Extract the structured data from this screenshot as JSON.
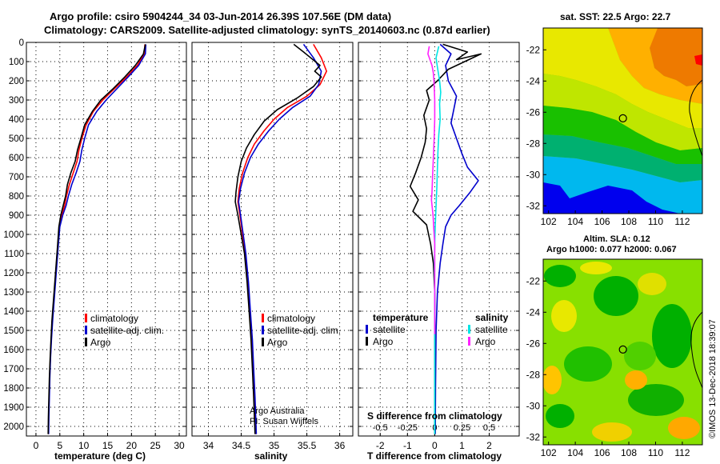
{
  "header": {
    "line1": "Argo profile: csiro 5904244_34 03-Jun-2014 26.39S 107.56E (DM data)",
    "line2": "Climatology: CARS2009. Satellite-adjusted climatology: synTS_20140603.nc (0.87d earlier)"
  },
  "credit": "©IMOS 13-Dec-2018 18:39:07",
  "colors": {
    "climatology": "#ff0000",
    "satellite": "#0000cc",
    "argo": "#000000",
    "sat_salinity": "#00e5e5",
    "argo_salinity": "#ff22ff"
  },
  "depth_axis": {
    "ylim": [
      0,
      2050
    ],
    "ticks": [
      0,
      100,
      200,
      300,
      400,
      500,
      600,
      700,
      800,
      900,
      1000,
      1100,
      1200,
      1300,
      1400,
      1500,
      1600,
      1700,
      1800,
      1900,
      2000
    ]
  },
  "chart_data": [
    {
      "type": "line",
      "xlabel": "temperature (deg C)",
      "xlim": [
        -2,
        31.5
      ],
      "xticks": [
        0,
        5,
        10,
        15,
        20,
        25,
        30
      ],
      "legend": {
        "items": [
          "climatology",
          "satellite-adj. clim.",
          "Argo"
        ]
      },
      "series": [
        {
          "name": "climatology",
          "color": "#ff0000",
          "points": [
            [
              22.8,
              10
            ],
            [
              22.7,
              60
            ],
            [
              21.2,
              120
            ],
            [
              19,
              180
            ],
            [
              16.5,
              240
            ],
            [
              14,
              300
            ],
            [
              12,
              360
            ],
            [
              10.5,
              430
            ],
            [
              9.6,
              500
            ],
            [
              9,
              560
            ],
            [
              8.6,
              620
            ],
            [
              7.8,
              680
            ],
            [
              7,
              740
            ],
            [
              6.4,
              800
            ],
            [
              6,
              850
            ],
            [
              5.4,
              900
            ],
            [
              4.9,
              960
            ],
            [
              4.6,
              1050
            ],
            [
              4.3,
              1150
            ],
            [
              4,
              1250
            ],
            [
              3.7,
              1350
            ],
            [
              3.4,
              1450
            ],
            [
              3.2,
              1550
            ],
            [
              3,
              1650
            ],
            [
              2.85,
              1750
            ],
            [
              2.75,
              1850
            ],
            [
              2.65,
              1950
            ],
            [
              2.6,
              2040
            ]
          ]
        },
        {
          "name": "satellite-adj. clim.",
          "color": "#0000cc",
          "points": [
            [
              23,
              10
            ],
            [
              22.9,
              60
            ],
            [
              21.5,
              120
            ],
            [
              19.3,
              180
            ],
            [
              17,
              240
            ],
            [
              14.7,
              300
            ],
            [
              12.7,
              360
            ],
            [
              11,
              430
            ],
            [
              10.2,
              500
            ],
            [
              9.6,
              560
            ],
            [
              9.2,
              620
            ],
            [
              8.4,
              680
            ],
            [
              7.5,
              740
            ],
            [
              6.8,
              800
            ],
            [
              6.3,
              850
            ],
            [
              5.6,
              900
            ],
            [
              5,
              960
            ],
            [
              4.7,
              1050
            ],
            [
              4.4,
              1150
            ],
            [
              4.1,
              1250
            ],
            [
              3.8,
              1350
            ],
            [
              3.5,
              1450
            ],
            [
              3.25,
              1550
            ],
            [
              3.05,
              1650
            ],
            [
              2.9,
              1750
            ],
            [
              2.8,
              1850
            ],
            [
              2.7,
              1950
            ],
            [
              2.65,
              2040
            ]
          ]
        },
        {
          "name": "Argo",
          "color": "#000000",
          "points": [
            [
              22.9,
              10
            ],
            [
              22.5,
              60
            ],
            [
              20.8,
              120
            ],
            [
              18.6,
              180
            ],
            [
              16.2,
              240
            ],
            [
              13.6,
              300
            ],
            [
              11.8,
              360
            ],
            [
              10.2,
              430
            ],
            [
              9.4,
              500
            ],
            [
              8.7,
              560
            ],
            [
              8.2,
              620
            ],
            [
              7.3,
              680
            ],
            [
              6.6,
              740
            ],
            [
              6.2,
              800
            ],
            [
              5.7,
              850
            ],
            [
              5.2,
              900
            ],
            [
              4.8,
              960
            ],
            [
              4.55,
              1050
            ],
            [
              4.25,
              1150
            ],
            [
              3.95,
              1250
            ],
            [
              3.65,
              1350
            ],
            [
              3.35,
              1450
            ],
            [
              3.15,
              1550
            ],
            [
              2.95,
              1650
            ],
            [
              2.8,
              1750
            ],
            [
              2.7,
              1850
            ],
            [
              2.6,
              1950
            ],
            [
              2.55,
              2040
            ]
          ]
        }
      ]
    },
    {
      "type": "line",
      "xlabel": "salinity",
      "xlim": [
        33.75,
        36.2
      ],
      "xticks": [
        34,
        34.5,
        35,
        35.5,
        36
      ],
      "legend": {
        "items": [
          "climatology",
          "satellite-adj. clim.",
          "Argo"
        ]
      },
      "annotation": [
        "Argo Australia",
        "PI: Susan Wijffels"
      ],
      "series": [
        {
          "name": "climatology",
          "color": "#ff0000",
          "points": [
            [
              35.6,
              10
            ],
            [
              35.72,
              80
            ],
            [
              35.8,
              150
            ],
            [
              35.7,
              220
            ],
            [
              35.5,
              280
            ],
            [
              35.2,
              340
            ],
            [
              35.0,
              400
            ],
            [
              34.85,
              460
            ],
            [
              34.7,
              530
            ],
            [
              34.6,
              600
            ],
            [
              34.52,
              680
            ],
            [
              34.47,
              760
            ],
            [
              34.45,
              830
            ],
            [
              34.48,
              900
            ],
            [
              34.52,
              1000
            ],
            [
              34.56,
              1100
            ],
            [
              34.6,
              1250
            ],
            [
              34.63,
              1400
            ],
            [
              34.66,
              1550
            ],
            [
              34.68,
              1700
            ],
            [
              34.7,
              1850
            ],
            [
              34.72,
              2040
            ]
          ]
        },
        {
          "name": "satellite-adj. clim.",
          "color": "#0000cc",
          "points": [
            [
              35.45,
              10
            ],
            [
              35.6,
              80
            ],
            [
              35.72,
              150
            ],
            [
              35.68,
              220
            ],
            [
              35.55,
              280
            ],
            [
              35.28,
              340
            ],
            [
              35.08,
              400
            ],
            [
              34.92,
              460
            ],
            [
              34.76,
              530
            ],
            [
              34.64,
              600
            ],
            [
              34.55,
              680
            ],
            [
              34.49,
              760
            ],
            [
              34.46,
              830
            ],
            [
              34.49,
              900
            ],
            [
              34.53,
              1000
            ],
            [
              34.57,
              1100
            ],
            [
              34.61,
              1250
            ],
            [
              34.64,
              1400
            ],
            [
              34.67,
              1550
            ],
            [
              34.69,
              1700
            ],
            [
              34.71,
              1850
            ],
            [
              34.73,
              2040
            ]
          ]
        },
        {
          "name": "Argo",
          "color": "#000000",
          "points": [
            [
              35.3,
              10
            ],
            [
              35.45,
              50
            ],
            [
              35.7,
              120
            ],
            [
              35.62,
              150
            ],
            [
              35.72,
              180
            ],
            [
              35.6,
              230
            ],
            [
              35.35,
              290
            ],
            [
              35.05,
              350
            ],
            [
              34.85,
              410
            ],
            [
              34.7,
              480
            ],
            [
              34.58,
              550
            ],
            [
              34.5,
              620
            ],
            [
              34.45,
              700
            ],
            [
              34.42,
              780
            ],
            [
              34.41,
              830
            ],
            [
              34.45,
              900
            ],
            [
              34.5,
              1000
            ],
            [
              34.55,
              1100
            ],
            [
              34.59,
              1250
            ],
            [
              34.62,
              1400
            ],
            [
              34.65,
              1550
            ],
            [
              34.67,
              1700
            ],
            [
              34.69,
              1850
            ],
            [
              34.71,
              2040
            ]
          ]
        }
      ]
    },
    {
      "type": "line",
      "xlabel": "T difference from climatology",
      "xlim": [
        -2.8,
        3.1
      ],
      "xticks": [
        -2,
        -1,
        0,
        1,
        2
      ],
      "top_label": "S difference from climatology",
      "top_xlim": [
        -0.7,
        0.775
      ],
      "top_ticks": [
        -0.5,
        -0.25,
        0,
        0.25,
        0.5
      ],
      "top_tick_labels": [
        "-0.5",
        "-0.25",
        "0",
        "0.25",
        "0.5"
      ],
      "legend": {
        "temperature_heading": "temperature",
        "salinity_heading": "salinity",
        "temperature_items": [
          "satellite",
          "Argo"
        ],
        "salinity_items": [
          "satellite",
          "Argo"
        ]
      },
      "series": [
        {
          "name": "T satellite",
          "color": "#0000cc",
          "points": [
            [
              0.2,
              10
            ],
            [
              0.6,
              60
            ],
            [
              0.4,
              120
            ],
            [
              0.5,
              200
            ],
            [
              0.8,
              280
            ],
            [
              0.7,
              350
            ],
            [
              0.6,
              420
            ],
            [
              0.8,
              500
            ],
            [
              1.0,
              580
            ],
            [
              1.2,
              650
            ],
            [
              1.6,
              720
            ],
            [
              1.3,
              780
            ],
            [
              0.9,
              850
            ],
            [
              0.6,
              900
            ],
            [
              0.4,
              960
            ],
            [
              0.3,
              1050
            ],
            [
              0.2,
              1150
            ],
            [
              0.1,
              1300
            ],
            [
              0.05,
              1500
            ],
            [
              0.03,
              1800
            ],
            [
              0.02,
              2040
            ]
          ]
        },
        {
          "name": "T Argo",
          "color": "#000000",
          "points": [
            [
              0.3,
              10
            ],
            [
              1.2,
              50
            ],
            [
              0.8,
              90
            ],
            [
              1.7,
              60
            ],
            [
              0.5,
              140
            ],
            [
              0.1,
              200
            ],
            [
              -0.3,
              250
            ],
            [
              -0.2,
              300
            ],
            [
              -0.4,
              380
            ],
            [
              -0.3,
              450
            ],
            [
              -0.35,
              520
            ],
            [
              -0.5,
              600
            ],
            [
              -0.7,
              680
            ],
            [
              -0.9,
              750
            ],
            [
              -0.6,
              820
            ],
            [
              -0.8,
              880
            ],
            [
              -0.3,
              950
            ],
            [
              -0.15,
              1050
            ],
            [
              -0.05,
              1150
            ],
            [
              0,
              1300
            ],
            [
              0,
              1500
            ],
            [
              0,
              1800
            ],
            [
              0,
              2040
            ]
          ]
        },
        {
          "name": "S satellite",
          "color": "#00e5e5",
          "points": [
            [
              0.15,
              20
            ],
            [
              0.05,
              80
            ],
            [
              0.1,
              130
            ],
            [
              0.18,
              200
            ],
            [
              0.22,
              260
            ],
            [
              0.18,
              320
            ],
            [
              0.2,
              400
            ],
            [
              0.15,
              480
            ],
            [
              0.12,
              560
            ],
            [
              0.1,
              650
            ],
            [
              0.08,
              750
            ],
            [
              0.05,
              850
            ],
            [
              0.02,
              950
            ],
            [
              0,
              1050
            ],
            [
              -0.01,
              1150
            ],
            [
              0,
              1300
            ],
            [
              0,
              1600
            ],
            [
              0,
              2040
            ]
          ]
        },
        {
          "name": "S Argo",
          "color": "#ff22ff",
          "points": [
            [
              -0.2,
              20
            ],
            [
              -0.25,
              60
            ],
            [
              -0.1,
              120
            ],
            [
              -0.05,
              160
            ],
            [
              -0.02,
              220
            ],
            [
              0.0,
              300
            ],
            [
              0,
              400
            ],
            [
              -0.02,
              500
            ],
            [
              -0.05,
              600
            ],
            [
              -0.08,
              700
            ],
            [
              -0.1,
              780
            ],
            [
              -0.12,
              820
            ],
            [
              -0.06,
              900
            ],
            [
              -0.03,
              980
            ],
            [
              0,
              1050
            ],
            [
              0,
              1150
            ],
            [
              0,
              1300
            ],
            [
              0,
              1450
            ],
            [
              0,
              1520
            ]
          ]
        }
      ]
    },
    {
      "type": "heatmap",
      "title": "sat. SST: 22.5 Argo: 22.7",
      "xticks": [
        102,
        104,
        106,
        108,
        110,
        112
      ],
      "yticks": [
        -22,
        -24,
        -26,
        -28,
        -30,
        -32
      ]
    },
    {
      "type": "heatmap",
      "title_line1": "Altim. SLA: 0.12",
      "title_line2": "Argo h1000: 0.077 h2000: 0.067",
      "xticks": [
        102,
        104,
        106,
        108,
        110,
        112
      ],
      "yticks": [
        -22,
        -24,
        -26,
        -28,
        -30,
        -32
      ]
    }
  ],
  "maps": {
    "argo_location": {
      "lon": 107.56,
      "lat": -26.39
    }
  }
}
